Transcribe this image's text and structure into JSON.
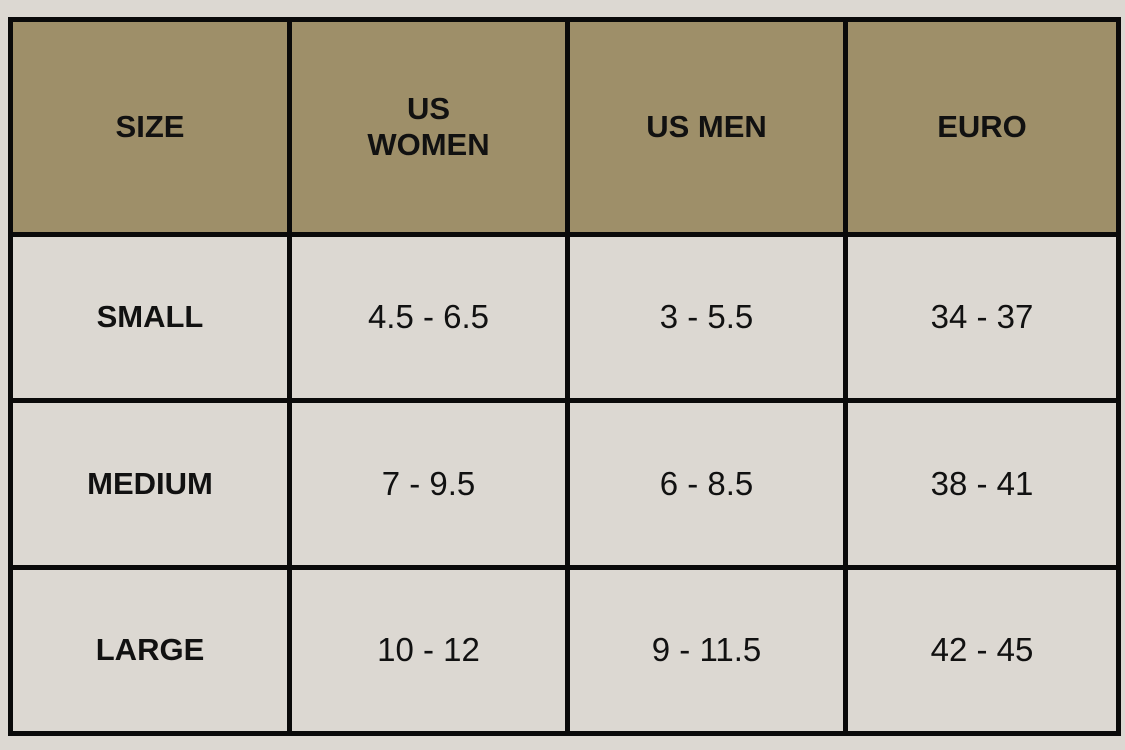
{
  "table": {
    "headers": [
      "SIZE",
      [
        "US",
        "WOMEN"
      ],
      "US MEN",
      "EURO"
    ],
    "rows": [
      [
        "SMALL",
        "4.5 - 6.5",
        "3 - 5.5",
        "34 - 37"
      ],
      [
        "MEDIUM",
        "7 - 9.5",
        "6 - 8.5",
        "38 - 41"
      ],
      [
        "LARGE",
        "10 - 12",
        "9 - 11.5",
        "42 - 45"
      ]
    ]
  },
  "colors": {
    "header_bg": "#9e8f69",
    "body_bg": "#dcd8d2",
    "border": "#0a0a0a"
  }
}
